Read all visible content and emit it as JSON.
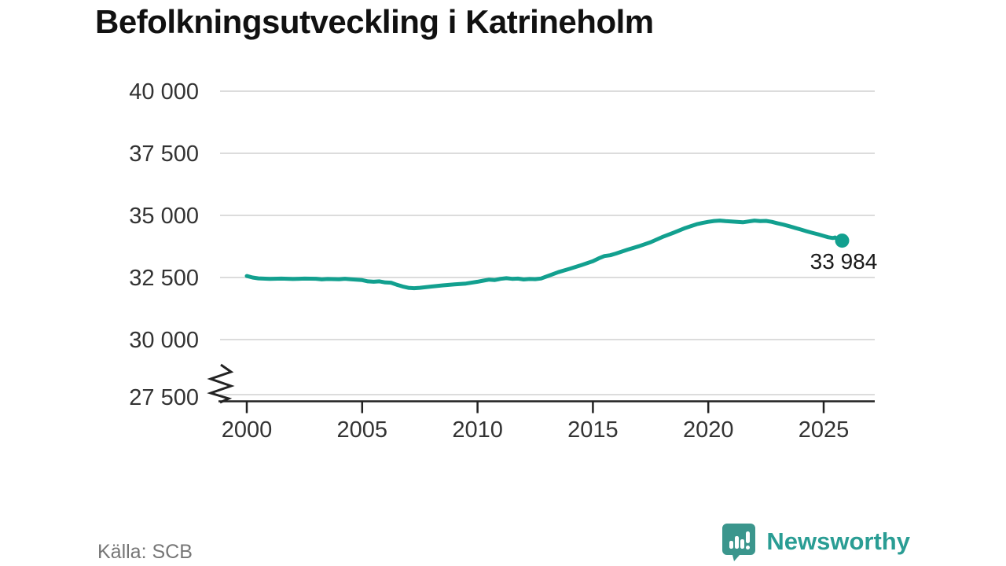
{
  "title": "Befolkningsutveckling i Katrineholm",
  "source": "Källa: SCB",
  "brand": {
    "name": "Newsworthy",
    "color": "#2a9d94",
    "icon": "bar-chart-speech-bubble"
  },
  "colors": {
    "line": "#12a08f",
    "grid": "#dcdcdc",
    "axis": "#222222",
    "tick_text": "#333333",
    "title_text": "#111111",
    "muted_text": "#767676"
  },
  "chart_data": {
    "type": "line",
    "title": "Befolkningsutveckling i Katrineholm",
    "xlabel": "",
    "ylabel": "",
    "grid": "horizontal-only",
    "broken_y_axis": true,
    "ylim": [
      27500,
      40000
    ],
    "xlim": [
      1998.8,
      2027.2
    ],
    "yticks": [
      40000,
      37500,
      35000,
      32500,
      30000,
      27500
    ],
    "ytick_labels": [
      "40 000",
      "37 500",
      "35 000",
      "32 500",
      "30 000",
      "27 500"
    ],
    "xticks": [
      2000,
      2005,
      2010,
      2015,
      2020,
      2025
    ],
    "xtick_labels": [
      "2000",
      "2005",
      "2010",
      "2015",
      "2020",
      "2025"
    ],
    "end_label": "33 984",
    "end_value": 33984,
    "series": [
      {
        "name": "Befolkning",
        "points": [
          [
            2000.0,
            32560
          ],
          [
            2000.25,
            32500
          ],
          [
            2000.5,
            32465
          ],
          [
            2001.0,
            32445
          ],
          [
            2001.5,
            32455
          ],
          [
            2002.0,
            32440
          ],
          [
            2002.5,
            32455
          ],
          [
            2003.0,
            32450
          ],
          [
            2003.25,
            32425
          ],
          [
            2003.5,
            32440
          ],
          [
            2004.0,
            32430
          ],
          [
            2004.25,
            32450
          ],
          [
            2004.5,
            32430
          ],
          [
            2005.0,
            32395
          ],
          [
            2005.25,
            32345
          ],
          [
            2005.5,
            32330
          ],
          [
            2005.75,
            32345
          ],
          [
            2006.0,
            32300
          ],
          [
            2006.25,
            32290
          ],
          [
            2006.5,
            32210
          ],
          [
            2006.75,
            32140
          ],
          [
            2007.0,
            32085
          ],
          [
            2007.25,
            32070
          ],
          [
            2007.5,
            32085
          ],
          [
            2008.0,
            32135
          ],
          [
            2008.5,
            32185
          ],
          [
            2009.0,
            32220
          ],
          [
            2009.5,
            32255
          ],
          [
            2010.0,
            32330
          ],
          [
            2010.25,
            32375
          ],
          [
            2010.5,
            32415
          ],
          [
            2010.75,
            32400
          ],
          [
            2011.0,
            32445
          ],
          [
            2011.25,
            32470
          ],
          [
            2011.5,
            32445
          ],
          [
            2011.75,
            32455
          ],
          [
            2012.0,
            32420
          ],
          [
            2012.25,
            32440
          ],
          [
            2012.5,
            32435
          ],
          [
            2012.75,
            32460
          ],
          [
            2013.0,
            32545
          ],
          [
            2013.5,
            32715
          ],
          [
            2014.0,
            32850
          ],
          [
            2014.5,
            33000
          ],
          [
            2015.0,
            33155
          ],
          [
            2015.25,
            33270
          ],
          [
            2015.5,
            33365
          ],
          [
            2015.75,
            33395
          ],
          [
            2016.0,
            33465
          ],
          [
            2016.5,
            33620
          ],
          [
            2017.0,
            33760
          ],
          [
            2017.5,
            33920
          ],
          [
            2018.0,
            34125
          ],
          [
            2018.5,
            34305
          ],
          [
            2019.0,
            34490
          ],
          [
            2019.25,
            34570
          ],
          [
            2019.5,
            34645
          ],
          [
            2019.75,
            34695
          ],
          [
            2020.0,
            34740
          ],
          [
            2020.25,
            34775
          ],
          [
            2020.5,
            34790
          ],
          [
            2020.75,
            34770
          ],
          [
            2021.0,
            34755
          ],
          [
            2021.25,
            34740
          ],
          [
            2021.5,
            34720
          ],
          [
            2021.75,
            34755
          ],
          [
            2022.0,
            34790
          ],
          [
            2022.25,
            34770
          ],
          [
            2022.5,
            34780
          ],
          [
            2022.75,
            34740
          ],
          [
            2023.0,
            34680
          ],
          [
            2023.25,
            34630
          ],
          [
            2023.5,
            34565
          ],
          [
            2023.75,
            34500
          ],
          [
            2024.0,
            34435
          ],
          [
            2024.25,
            34365
          ],
          [
            2024.5,
            34300
          ],
          [
            2024.75,
            34240
          ],
          [
            2025.0,
            34175
          ],
          [
            2025.2,
            34120
          ],
          [
            2025.4,
            34090
          ],
          [
            2025.5,
            34110
          ],
          [
            2025.6,
            34030
          ],
          [
            2025.7,
            33960
          ],
          [
            2025.8,
            33984
          ]
        ]
      }
    ]
  }
}
